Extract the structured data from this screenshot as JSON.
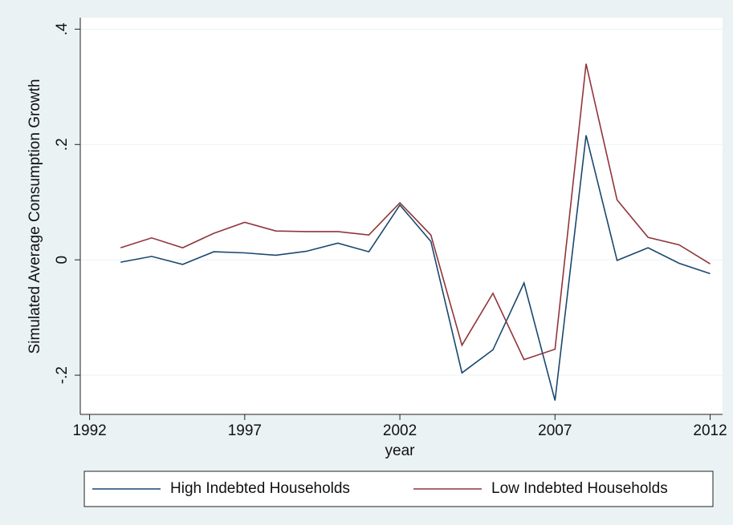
{
  "chart_data": {
    "type": "line",
    "x_label": "year",
    "y_label": "Simulated Average Consumption Growth",
    "x": [
      1993,
      1994,
      1995,
      1996,
      1997,
      1998,
      1999,
      2000,
      2001,
      2002,
      2003,
      2004,
      2005,
      2006,
      2007,
      2008,
      2009,
      2010,
      2011,
      2012
    ],
    "series": [
      {
        "name": "High Indebted Households",
        "color": "#1a476f",
        "values": [
          -0.004,
          0.006,
          -0.008,
          0.014,
          0.012,
          0.008,
          0.015,
          0.029,
          0.014,
          0.095,
          0.032,
          -0.196,
          -0.156,
          -0.04,
          -0.244,
          0.216,
          -0.001,
          0.021,
          -0.006,
          -0.024
        ]
      },
      {
        "name": "Low Indebted Households",
        "color": "#90353b",
        "values": [
          0.021,
          0.038,
          0.021,
          0.046,
          0.065,
          0.05,
          0.049,
          0.049,
          0.043,
          0.099,
          0.043,
          -0.148,
          -0.058,
          -0.173,
          -0.155,
          0.34,
          0.104,
          0.039,
          0.026,
          -0.007
        ]
      }
    ],
    "xlim": [
      1991.7,
      2012.4
    ],
    "xticks": [
      1992,
      1997,
      2002,
      2007,
      2012
    ],
    "ylim": [
      -0.268,
      0.42
    ],
    "yticks": [
      {
        "value": -0.2,
        "label": "-.2"
      },
      0,
      {
        "value": 0.2,
        "label": ".2"
      },
      {
        "value": 0.4,
        "label": ".4"
      }
    ],
    "grid": true,
    "legend": "bottom"
  }
}
